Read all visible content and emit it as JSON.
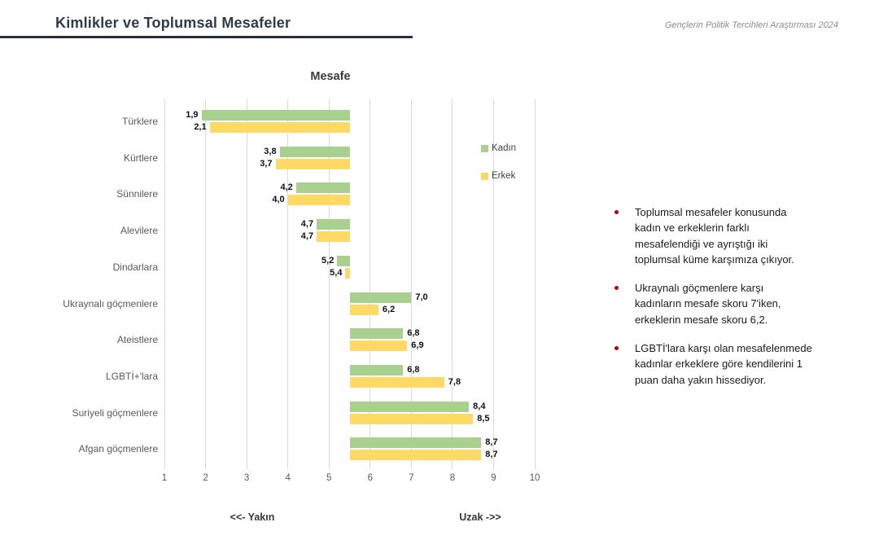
{
  "header": {
    "title": "Kimlikler ve Toplumsal Mesafeler",
    "subtitle": "Gençlerin Politik Tercihleri Araştırması 2024"
  },
  "chart_data": {
    "type": "bar",
    "orientation": "horizontal",
    "diverging_baseline": 5.5,
    "title": "Mesafe",
    "categories": [
      "Türklere",
      "Kürtlere",
      "Sünnilere",
      "Alevilere",
      "Dindarlara",
      "Ukraynalı göçmenlere",
      "Ateistlere",
      "LGBTİ+'lara",
      "Suriyeli göçmenlere",
      "Afgan göçmenlere"
    ],
    "series": [
      {
        "name": "Kadın",
        "color": "#A9D08E",
        "values": [
          1.9,
          3.8,
          4.2,
          4.7,
          5.2,
          7.0,
          6.8,
          6.8,
          8.4,
          8.7
        ],
        "labels": [
          "1,9",
          "3,8",
          "4,2",
          "4,7",
          "5,2",
          "7,0",
          "6,8",
          "6,8",
          "8,4",
          "8,7"
        ]
      },
      {
        "name": "Erkek",
        "color": "#FFD966",
        "values": [
          2.1,
          3.7,
          4.0,
          4.7,
          5.4,
          6.2,
          6.9,
          7.8,
          8.5,
          8.7
        ],
        "labels": [
          "2,1",
          "3,7",
          "4,0",
          "4,7",
          "5,4",
          "6,2",
          "6,9",
          "7,8",
          "8,5",
          "8,7"
        ]
      }
    ],
    "xlim": [
      1,
      10
    ],
    "xticks": [
      "1",
      "2",
      "3",
      "4",
      "5",
      "6",
      "7",
      "8",
      "9",
      "10"
    ],
    "grid": true,
    "legend_position": "inside-right",
    "axis_caption_left": "<<- Yakın",
    "axis_caption_right": "Uzak ->>"
  },
  "notes": {
    "items": [
      "Toplumsal mesafeler konusunda kadın ve erkeklerin farklı mesafelendiği ve ayrıştığı iki toplumsal küme karşımıza çıkıyor.",
      "Ukraynalı göçmenlere karşı kadınların mesafe skoru 7'iken, erkeklerin mesafe skoru 6,2.",
      "LGBTİ'lara karşı olan mesafelenmede kadınlar erkeklere göre kendilerini 1 puan daha yakın hissediyor."
    ]
  },
  "colors": {
    "kadin": "#A9D08E",
    "erkek": "#FFD966",
    "header_accent": "#25303F",
    "bullet": "#C00000",
    "gridline": "#D9D9D9"
  }
}
